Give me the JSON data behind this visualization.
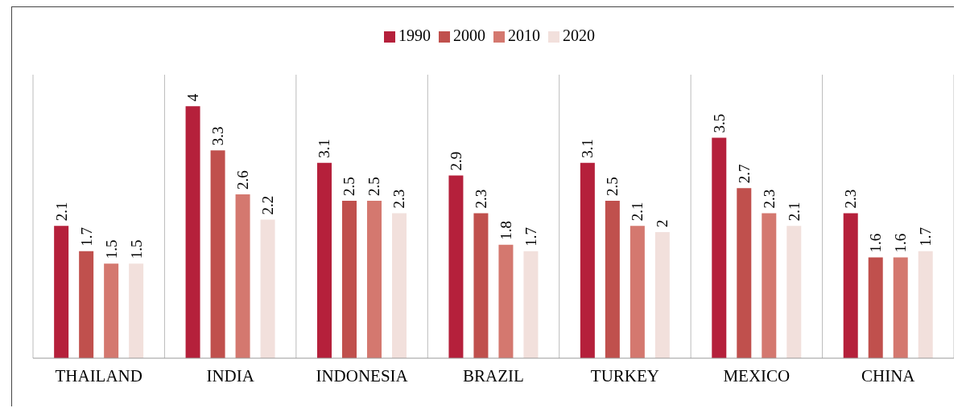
{
  "chart_data": {
    "type": "bar",
    "categories": [
      "THAILAND",
      "INDIA",
      "INDONESIA",
      "BRAZIL",
      "TURKEY",
      "MEXICO",
      "CHINA"
    ],
    "series": [
      {
        "name": "1990",
        "color": "#b5203b",
        "values": [
          2.1,
          4,
          3.1,
          2.9,
          3.1,
          3.5,
          2.3
        ]
      },
      {
        "name": "2000",
        "color": "#c0504d",
        "values": [
          1.7,
          3.3,
          2.5,
          2.3,
          2.5,
          2.7,
          1.6
        ]
      },
      {
        "name": "2010",
        "color": "#d4786f",
        "values": [
          1.5,
          2.6,
          2.5,
          1.8,
          2.1,
          2.3,
          1.6
        ]
      },
      {
        "name": "2020",
        "color": "#f2e0dc",
        "values": [
          1.5,
          2.2,
          2.3,
          1.7,
          2,
          2.1,
          1.7
        ]
      }
    ],
    "ylim": [
      0,
      4.5
    ],
    "data_labels": true,
    "grid": "x",
    "legend": "top",
    "tick_labels": "x"
  }
}
